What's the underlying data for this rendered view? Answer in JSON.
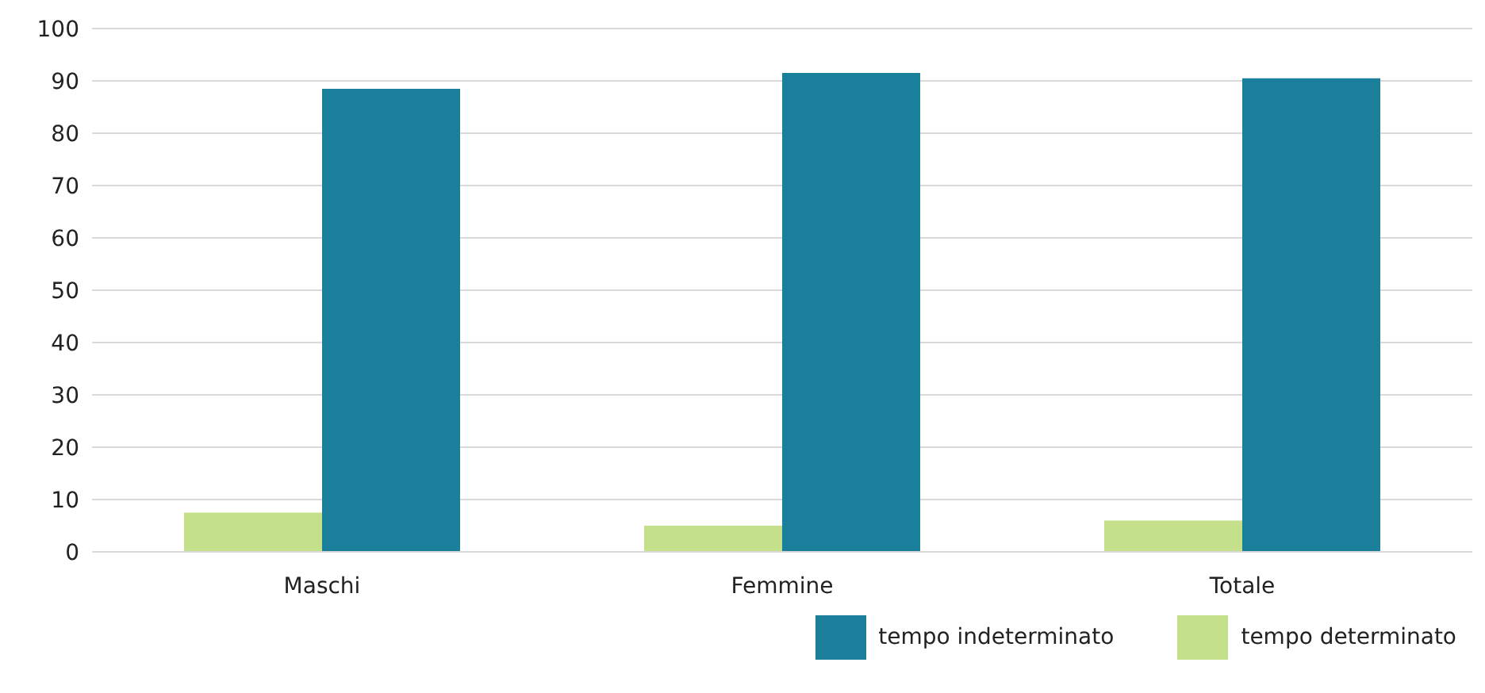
{
  "chart_data": {
    "type": "bar",
    "categories": [
      "Maschi",
      "Femmine",
      "Totale"
    ],
    "series": [
      {
        "name": "tempo determinato",
        "color": "#c5e08a",
        "values": [
          7.5,
          5,
          6
        ]
      },
      {
        "name": "tempo indeterminato",
        "color": "#1a7f9a",
        "values": [
          88.5,
          91.5,
          90.5
        ]
      }
    ],
    "ylim": [
      0,
      100
    ],
    "yticks": [
      0,
      10,
      20,
      30,
      40,
      50,
      60,
      70,
      80,
      90,
      100
    ],
    "grid": "y",
    "legend": "bottom right"
  }
}
